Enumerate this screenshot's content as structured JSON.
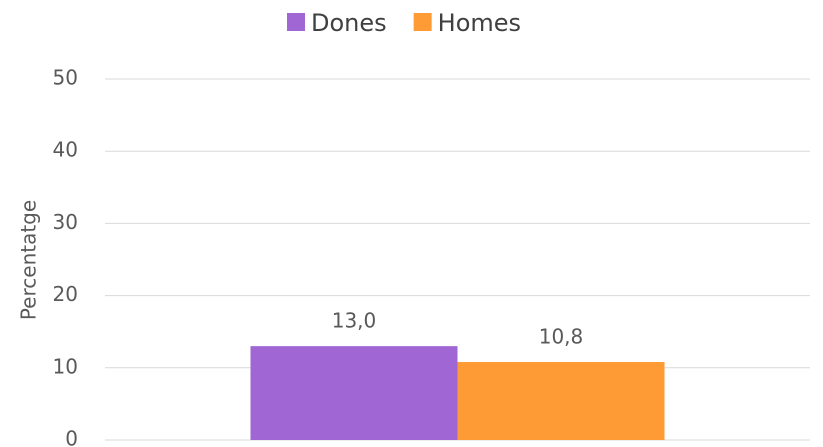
{
  "chart_data": {
    "type": "bar",
    "categories": [
      null
    ],
    "series": [
      {
        "name": "Dones",
        "color": "#a066d3",
        "values": [
          13.0
        ],
        "value_labels": [
          "13,0"
        ]
      },
      {
        "name": "Homes",
        "color": "#ff9b35",
        "values": [
          10.8
        ],
        "value_labels": [
          "10,8"
        ]
      }
    ],
    "ylabel": "Percentatge",
    "ylim": [
      0,
      50
    ],
    "yticks": [
      0,
      10,
      20,
      30,
      40,
      50
    ],
    "grid": true,
    "legend": "top"
  }
}
